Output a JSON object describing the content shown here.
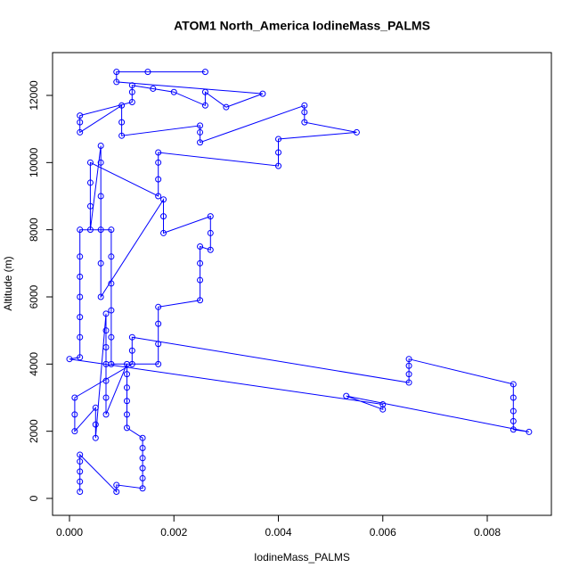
{
  "chart_data": {
    "type": "line",
    "title": "ATOM1 North_America IodineMass_PALMS",
    "x_label": "IodineMass_PALMS",
    "y_label": "Altitude (m)",
    "color": "#0000ff",
    "markers": true,
    "x": [
      0.0002,
      0.0002,
      0.0002,
      0.0002,
      0.0002,
      0.0009,
      0.0009,
      0.0014,
      0.0014,
      0.0014,
      0.0014,
      0.0014,
      0.0014,
      0.0011,
      0.0011,
      0.0011,
      0.0011,
      0.0011,
      0.0011,
      0.0007,
      0.0007,
      0.0007,
      0.0007,
      0.0007,
      0.0007,
      0.0007,
      0.0005,
      0.0005,
      0.0005,
      0.0001,
      0.0001,
      0.0001,
      0.0012,
      0.0012,
      0.0012,
      0.0065,
      0.0065,
      0.0065,
      0.0065,
      0.0085,
      0.0085,
      0.0085,
      0.0085,
      0.0085,
      0.0088,
      0.0053,
      0.006,
      0.006,
      0,
      0.0002,
      0.0002,
      0.0002,
      0.0002,
      0.0002,
      0.0002,
      0.0002,
      0.0008,
      0.0008,
      0.0008,
      0.0008,
      0.0008,
      0.0008,
      0.0017,
      0.0017,
      0.0017,
      0.0017,
      0.0025,
      0.0025,
      0.0025,
      0.0025,
      0.0027,
      0.0027,
      0.0027,
      0.0018,
      0.0018,
      0.0018,
      0.0006,
      0.0006,
      0.0006,
      0.0006,
      0.0006,
      0.0006,
      0.0004,
      0.0004,
      0.0004,
      0.0004,
      0.0017,
      0.0017,
      0.0017,
      0.0017,
      0.004,
      0.004,
      0.004,
      0.0055,
      0.0045,
      0.0045,
      0.0045,
      0.0025,
      0.0025,
      0.0025,
      0.001,
      0.001,
      0.001,
      0.0002,
      0.0002,
      0.0002,
      0.0012,
      0.0012,
      0.0012,
      0.0016,
      0.002,
      0.0026,
      0.0026,
      0.003,
      0.0037,
      0.0009,
      0.0009,
      0.0015,
      0.0026
    ],
    "values": [
      200,
      500,
      800,
      1100,
      1300,
      200,
      400,
      300,
      600,
      900,
      1200,
      1500,
      1800,
      2100,
      2500,
      2900,
      3300,
      3700,
      4000,
      2500,
      3000,
      3500,
      4000,
      4500,
      5000,
      5500,
      1800,
      2200,
      2700,
      2000,
      2500,
      3000,
      4000,
      4400,
      4800,
      3450,
      3700,
      3950,
      4150,
      3400,
      3000,
      2600,
      2300,
      2050,
      1980,
      3050,
      2650,
      2800,
      4150,
      4200,
      4800,
      5400,
      6000,
      6600,
      7200,
      8000,
      8000,
      7200,
      6400,
      5600,
      4800,
      4000,
      4000,
      4600,
      5200,
      5700,
      5900,
      6500,
      7000,
      7500,
      7400,
      7900,
      8400,
      7900,
      8400,
      8900,
      6000,
      7000,
      8000,
      9000,
      10000,
      10500,
      8000,
      8700,
      9400,
      10000,
      9000,
      9500,
      10000,
      10300,
      9900,
      10300,
      10700,
      10900,
      11200,
      11500,
      11700,
      10600,
      10900,
      11100,
      10800,
      11200,
      11700,
      10900,
      11200,
      11400,
      11800,
      12100,
      12300,
      12200,
      12100,
      11700,
      12100,
      11650,
      12050,
      12400,
      12700,
      12700,
      12700
    ],
    "xlim": [
      -0.000324,
      0.009228
    ],
    "ylim": [
      -504,
      13274
    ],
    "xticks": [
      {
        "value": 0,
        "label": "0.000"
      },
      {
        "value": 0.002,
        "label": "0.002"
      },
      {
        "value": 0.004,
        "label": "0.004"
      },
      {
        "value": 0.006,
        "label": "0.006"
      },
      {
        "value": 0.008,
        "label": "0.008"
      }
    ],
    "yticks": [
      0,
      2000,
      4000,
      6000,
      8000,
      10000,
      12000
    ]
  }
}
